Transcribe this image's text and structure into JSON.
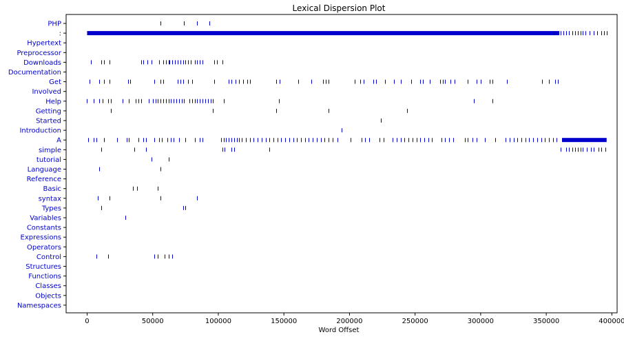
{
  "chart_data": {
    "type": "scatter",
    "title": "Lexical Dispersion Plot",
    "xlabel": "Word Offset",
    "ylabel": "",
    "xlim": [
      -16000,
      404000
    ],
    "xticks": [
      0,
      50000,
      100000,
      150000,
      200000,
      250000,
      300000,
      350000,
      400000
    ],
    "grid": false,
    "words": [
      {
        "word": "PHP",
        "offsets": [
          56000,
          74000,
          84000,
          93000
        ]
      },
      {
        "word": ":",
        "offsets": "dense",
        "dense_ranges": [
          [
            0,
            360000
          ]
        ],
        "sparse_offsets": [
          361000,
          363000,
          365000,
          367000,
          370000,
          372000,
          374000,
          376000,
          378000,
          380000,
          383000,
          386000,
          389000,
          392000,
          394000,
          396000
        ]
      },
      {
        "word": "Hypertext",
        "offsets": []
      },
      {
        "word": "Preprocessor",
        "offsets": []
      },
      {
        "word": "Downloads",
        "offsets": [
          3000,
          11000,
          13000,
          17000,
          41000,
          43000,
          46000,
          49000,
          55000,
          58000,
          60000,
          62000,
          63000,
          65000,
          67000,
          69000,
          71000,
          73000,
          75000,
          77000,
          79000,
          82000,
          84000,
          86000,
          88000,
          97000,
          99000,
          103000
        ]
      },
      {
        "word": "Documentation",
        "offsets": []
      },
      {
        "word": "Get",
        "offsets": [
          2000,
          9000,
          13000,
          17000,
          31000,
          33000,
          51000,
          56000,
          58000,
          69000,
          71000,
          73000,
          77000,
          80000,
          97000,
          108000,
          110000,
          113000,
          116000,
          119000,
          122000,
          124000,
          144000,
          147000,
          161000,
          171000,
          180000,
          182000,
          184000,
          204000,
          208000,
          211000,
          218000,
          220000,
          227000,
          234000,
          239000,
          247000,
          254000,
          256000,
          261000,
          269000,
          271000,
          273000,
          277000,
          280000,
          290000,
          297000,
          300000,
          307000,
          309000,
          320000,
          347000,
          352000,
          357000,
          359000
        ]
      },
      {
        "word": "Involved",
        "offsets": []
      },
      {
        "word": "Help",
        "offsets": [
          0,
          5000,
          9000,
          12000,
          16000,
          18000,
          27000,
          32000,
          37000,
          39000,
          41000,
          47000,
          50000,
          52000,
          54000,
          56000,
          58000,
          60000,
          62000,
          64000,
          66000,
          68000,
          70000,
          72000,
          74000,
          78000,
          80000,
          82000,
          84000,
          86000,
          88000,
          90000,
          92000,
          94000,
          96000,
          104000,
          146000,
          295000,
          309000
        ]
      },
      {
        "word": "Getting",
        "offsets": [
          18000,
          96000,
          144000,
          184000,
          244000
        ]
      },
      {
        "word": "Started",
        "offsets": [
          224000
        ]
      },
      {
        "word": "Introduction",
        "offsets": [
          194000
        ]
      },
      {
        "word": "A",
        "offsets": "dense",
        "dense_ranges": [
          [
            362000,
            396000
          ]
        ],
        "sparse_offsets": [
          1000,
          5000,
          7000,
          13000,
          23000,
          30000,
          32000,
          39000,
          43000,
          45000,
          51000,
          55000,
          57000,
          61000,
          64000,
          66000,
          70000,
          75000,
          82000,
          86000,
          88000,
          102000,
          104000,
          106000,
          108000,
          110000,
          112000,
          114000,
          116000,
          118000,
          121000,
          124000,
          127000,
          130000,
          133000,
          136000,
          139000,
          142000,
          145000,
          148000,
          151000,
          154000,
          157000,
          160000,
          163000,
          166000,
          169000,
          172000,
          175000,
          178000,
          181000,
          184000,
          187000,
          191000,
          201000,
          209000,
          212000,
          215000,
          223000,
          226000,
          233000,
          236000,
          239000,
          242000,
          245000,
          248000,
          251000,
          254000,
          257000,
          260000,
          263000,
          270000,
          273000,
          276000,
          279000,
          288000,
          290000,
          294000,
          297000,
          303000,
          311000,
          319000,
          322000,
          325000,
          328000,
          331000,
          334000,
          337000,
          340000,
          343000,
          346000,
          349000,
          352000,
          355000,
          358000
        ]
      },
      {
        "word": "simple",
        "offsets": [
          11000,
          36000,
          45000,
          103000,
          105000,
          110000,
          112000,
          139000,
          361000,
          365000,
          367000,
          370000,
          372000,
          374000,
          376000,
          378000,
          381000,
          384000,
          386000,
          390000,
          392000,
          395000
        ]
      },
      {
        "word": "tutorial",
        "offsets": [
          49000,
          62000
        ]
      },
      {
        "word": "Language",
        "offsets": [
          9000,
          56000
        ]
      },
      {
        "word": "Reference",
        "offsets": []
      },
      {
        "word": "Basic",
        "offsets": [
          35000,
          38000,
          54000
        ]
      },
      {
        "word": "syntax",
        "offsets": [
          8000,
          17000,
          56000,
          84000
        ]
      },
      {
        "word": "Types",
        "offsets": [
          11000,
          73000,
          75000
        ]
      },
      {
        "word": "Variables",
        "offsets": [
          29000
        ]
      },
      {
        "word": "Constants",
        "offsets": []
      },
      {
        "word": "Expressions",
        "offsets": []
      },
      {
        "word": "Operators",
        "offsets": []
      },
      {
        "word": "Control",
        "offsets": [
          7000,
          16000,
          51000,
          54000,
          59000,
          62000,
          65000
        ]
      },
      {
        "word": "Structures",
        "offsets": []
      },
      {
        "word": "Functions",
        "offsets": []
      },
      {
        "word": "Classes",
        "offsets": []
      },
      {
        "word": "Objects",
        "offsets": []
      },
      {
        "word": "Namespaces",
        "offsets": []
      }
    ]
  }
}
